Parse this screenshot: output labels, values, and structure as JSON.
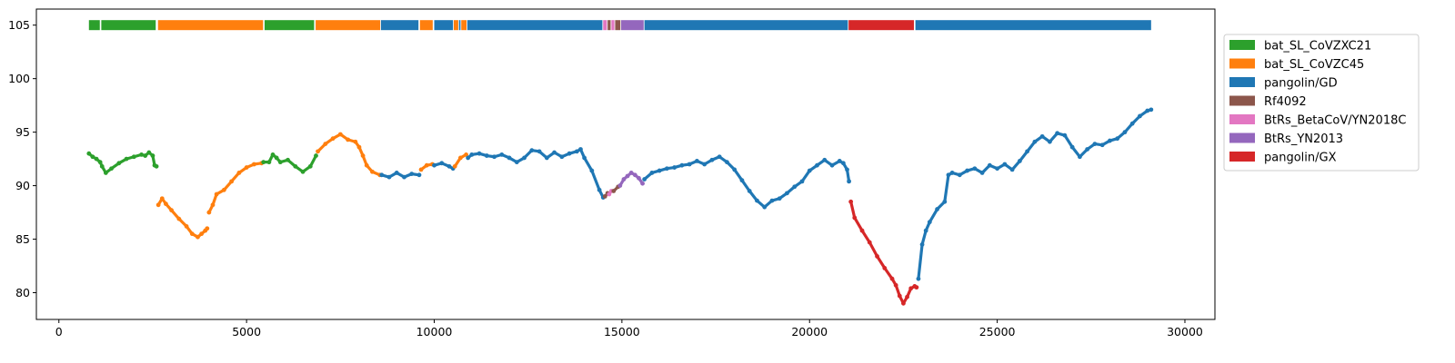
{
  "chart_data": {
    "type": "scatter",
    "title": "",
    "xlabel": "",
    "ylabel": "",
    "xlim": [
      -600,
      30800
    ],
    "ylim": [
      77.5,
      106.5
    ],
    "xticks": [
      0,
      5000,
      10000,
      15000,
      20000,
      25000,
      30000
    ],
    "xtick_labels": [
      "0",
      "5000",
      "10000",
      "15000",
      "20000",
      "25000",
      "30000"
    ],
    "yticks": [
      80,
      85,
      90,
      95,
      100,
      105
    ],
    "ytick_labels": [
      "80",
      "85",
      "90",
      "95",
      "100",
      "105"
    ],
    "grid": false,
    "legend_position": "outside-right-top",
    "series": [
      {
        "name": "bat_SL_CoVZXC21",
        "color": "#2ca02c"
      },
      {
        "name": "bat_SL_CoVZC45",
        "color": "#ff7f0e"
      },
      {
        "name": "pangolin/GD",
        "color": "#1f77b4"
      },
      {
        "name": "Rf4092",
        "color": "#8c564b"
      },
      {
        "name": "BtRs_BetaCoV/YN2018C",
        "color": "#e377c2"
      },
      {
        "name": "BtRs_YN2013",
        "color": "#9467bd"
      },
      {
        "name": "pangolin/GX",
        "color": "#d62728"
      }
    ],
    "similarity_points": [
      {
        "series": "bat_SL_CoVZXC21",
        "points": [
          [
            800,
            93.0
          ],
          [
            900,
            92.7
          ],
          [
            1000,
            92.5
          ],
          [
            1100,
            92.2
          ],
          [
            1150,
            91.8
          ],
          [
            1250,
            91.2
          ],
          [
            1400,
            91.6
          ],
          [
            1600,
            92.1
          ],
          [
            1800,
            92.5
          ],
          [
            2000,
            92.7
          ],
          [
            2200,
            92.9
          ],
          [
            2300,
            92.8
          ],
          [
            2400,
            93.1
          ],
          [
            2500,
            92.8
          ],
          [
            2550,
            91.9
          ],
          [
            2600,
            91.8
          ]
        ]
      },
      {
        "series": "bat_SL_CoVZC45",
        "points": [
          [
            2650,
            88.2
          ],
          [
            2750,
            88.8
          ],
          [
            2850,
            88.3
          ],
          [
            3000,
            87.7
          ],
          [
            3200,
            86.9
          ],
          [
            3400,
            86.2
          ],
          [
            3550,
            85.5
          ],
          [
            3700,
            85.2
          ],
          [
            3800,
            85.5
          ],
          [
            3900,
            85.8
          ],
          [
            3950,
            86.0
          ]
        ]
      },
      {
        "series": "bat_SL_CoVZC45",
        "points": [
          [
            4000,
            87.5
          ],
          [
            4100,
            88.2
          ],
          [
            4200,
            89.2
          ],
          [
            4400,
            89.6
          ],
          [
            4600,
            90.4
          ],
          [
            4800,
            91.2
          ],
          [
            5000,
            91.7
          ],
          [
            5200,
            92.0
          ],
          [
            5400,
            92.1
          ]
        ]
      },
      {
        "series": "bat_SL_CoVZXC21",
        "points": [
          [
            5450,
            92.2
          ],
          [
            5600,
            92.2
          ],
          [
            5700,
            92.9
          ],
          [
            5800,
            92.6
          ],
          [
            5900,
            92.2
          ],
          [
            6100,
            92.4
          ],
          [
            6300,
            91.8
          ],
          [
            6500,
            91.3
          ],
          [
            6700,
            91.8
          ],
          [
            6850,
            92.8
          ]
        ]
      },
      {
        "series": "bat_SL_CoVZC45",
        "points": [
          [
            6900,
            93.2
          ],
          [
            7100,
            93.9
          ],
          [
            7300,
            94.4
          ],
          [
            7500,
            94.8
          ],
          [
            7700,
            94.3
          ],
          [
            7900,
            94.1
          ],
          [
            8000,
            93.6
          ],
          [
            8100,
            92.8
          ],
          [
            8200,
            91.9
          ],
          [
            8350,
            91.3
          ],
          [
            8550,
            91.0
          ]
        ]
      },
      {
        "series": "pangolin/GD",
        "points": [
          [
            8600,
            91.0
          ],
          [
            8800,
            90.8
          ],
          [
            9000,
            91.2
          ],
          [
            9200,
            90.8
          ],
          [
            9400,
            91.1
          ],
          [
            9600,
            91.0
          ]
        ]
      },
      {
        "series": "bat_SL_CoVZC45",
        "points": [
          [
            9650,
            91.5
          ],
          [
            9800,
            91.9
          ],
          [
            9950,
            92.0
          ]
        ]
      },
      {
        "series": "pangolin/GD",
        "points": [
          [
            10000,
            91.9
          ],
          [
            10200,
            92.1
          ],
          [
            10400,
            91.8
          ],
          [
            10500,
            91.6
          ]
        ]
      },
      {
        "series": "bat_SL_CoVZC45",
        "points": [
          [
            10550,
            91.8
          ],
          [
            10700,
            92.6
          ],
          [
            10850,
            92.9
          ]
        ]
      },
      {
        "series": "pangolin/GD",
        "points": [
          [
            10900,
            92.6
          ],
          [
            11000,
            92.9
          ],
          [
            11200,
            93.0
          ],
          [
            11400,
            92.8
          ],
          [
            11600,
            92.7
          ],
          [
            11800,
            92.9
          ],
          [
            12000,
            92.6
          ],
          [
            12200,
            92.2
          ],
          [
            12400,
            92.6
          ],
          [
            12600,
            93.3
          ],
          [
            12800,
            93.2
          ],
          [
            13000,
            92.6
          ],
          [
            13200,
            93.1
          ],
          [
            13400,
            92.7
          ],
          [
            13600,
            93.0
          ],
          [
            13800,
            93.2
          ],
          [
            13900,
            93.4
          ],
          [
            14000,
            92.6
          ],
          [
            14200,
            91.4
          ],
          [
            14400,
            89.6
          ],
          [
            14500,
            88.9
          ]
        ]
      },
      {
        "series": "Rf4092",
        "points": [
          [
            14550,
            89.0
          ],
          [
            14620,
            89.3
          ]
        ]
      },
      {
        "series": "BtRs_BetaCoV/YN2018C",
        "points": [
          [
            14660,
            89.2
          ],
          [
            14720,
            89.5
          ]
        ]
      },
      {
        "series": "Rf4092",
        "points": [
          [
            14780,
            89.5
          ],
          [
            14900,
            89.9
          ]
        ]
      },
      {
        "series": "BtRs_YN2013",
        "points": [
          [
            14950,
            90.0
          ],
          [
            15050,
            90.6
          ],
          [
            15150,
            90.9
          ],
          [
            15250,
            91.2
          ],
          [
            15350,
            91.0
          ],
          [
            15450,
            90.7
          ],
          [
            15550,
            90.2
          ]
        ]
      },
      {
        "series": "pangolin/GD",
        "points": [
          [
            15600,
            90.6
          ],
          [
            15800,
            91.2
          ],
          [
            16000,
            91.4
          ],
          [
            16200,
            91.6
          ],
          [
            16400,
            91.7
          ],
          [
            16600,
            91.9
          ],
          [
            16800,
            92.0
          ],
          [
            17000,
            92.3
          ],
          [
            17200,
            92.0
          ],
          [
            17400,
            92.4
          ],
          [
            17600,
            92.7
          ],
          [
            17800,
            92.2
          ],
          [
            18000,
            91.5
          ],
          [
            18200,
            90.5
          ],
          [
            18400,
            89.5
          ],
          [
            18600,
            88.6
          ],
          [
            18800,
            88.0
          ],
          [
            19000,
            88.6
          ],
          [
            19200,
            88.8
          ],
          [
            19400,
            89.3
          ],
          [
            19600,
            89.9
          ],
          [
            19800,
            90.4
          ],
          [
            20000,
            91.4
          ],
          [
            20200,
            91.9
          ],
          [
            20400,
            92.4
          ],
          [
            20600,
            91.9
          ],
          [
            20800,
            92.3
          ],
          [
            20900,
            92.1
          ],
          [
            21000,
            91.5
          ],
          [
            21050,
            90.4
          ]
        ]
      },
      {
        "series": "pangolin/GX",
        "points": [
          [
            21100,
            88.5
          ],
          [
            21200,
            87.0
          ],
          [
            21400,
            85.8
          ],
          [
            21600,
            84.7
          ],
          [
            21800,
            83.4
          ],
          [
            22000,
            82.3
          ],
          [
            22200,
            81.3
          ],
          [
            22300,
            80.7
          ],
          [
            22400,
            79.7
          ],
          [
            22500,
            79.0
          ],
          [
            22600,
            79.6
          ],
          [
            22700,
            80.4
          ],
          [
            22800,
            80.6
          ],
          [
            22850,
            80.5
          ]
        ]
      },
      {
        "series": "pangolin/GD",
        "points": [
          [
            22900,
            81.3
          ],
          [
            23000,
            84.5
          ],
          [
            23100,
            85.8
          ],
          [
            23200,
            86.6
          ],
          [
            23400,
            87.8
          ],
          [
            23600,
            88.5
          ],
          [
            23700,
            91.0
          ],
          [
            23800,
            91.2
          ],
          [
            24000,
            91.0
          ],
          [
            24200,
            91.4
          ],
          [
            24400,
            91.6
          ],
          [
            24600,
            91.2
          ],
          [
            24800,
            91.9
          ],
          [
            25000,
            91.6
          ],
          [
            25200,
            92.0
          ],
          [
            25400,
            91.5
          ],
          [
            25600,
            92.3
          ],
          [
            25800,
            93.2
          ],
          [
            26000,
            94.1
          ],
          [
            26200,
            94.6
          ],
          [
            26400,
            94.1
          ],
          [
            26600,
            94.9
          ],
          [
            26800,
            94.7
          ],
          [
            27000,
            93.6
          ],
          [
            27200,
            92.7
          ],
          [
            27400,
            93.4
          ],
          [
            27600,
            93.9
          ],
          [
            27800,
            93.8
          ],
          [
            28000,
            94.2
          ],
          [
            28200,
            94.4
          ],
          [
            28400,
            95.0
          ],
          [
            28600,
            95.8
          ],
          [
            28800,
            96.5
          ],
          [
            29000,
            97.0
          ],
          [
            29100,
            97.1
          ]
        ]
      }
    ],
    "band_y": 105,
    "band_segments": [
      {
        "series": "bat_SL_CoVZXC21",
        "x0": 800,
        "x1": 1090
      },
      {
        "series": "bat_SL_CoVZXC21",
        "x0": 1130,
        "x1": 2580
      },
      {
        "series": "bat_SL_CoVZC45",
        "x0": 2640,
        "x1": 5440
      },
      {
        "series": "bat_SL_CoVZXC21",
        "x0": 5480,
        "x1": 6800
      },
      {
        "series": "bat_SL_CoVZC45",
        "x0": 6840,
        "x1": 8560
      },
      {
        "series": "pangolin/GD",
        "x0": 8580,
        "x1": 9580
      },
      {
        "series": "bat_SL_CoVZC45",
        "x0": 9620,
        "x1": 9960
      },
      {
        "series": "pangolin/GD",
        "x0": 10000,
        "x1": 10500
      },
      {
        "series": "bat_SL_CoVZC45",
        "x0": 10520,
        "x1": 10640
      },
      {
        "series": "pangolin/GD",
        "x0": 10660,
        "x1": 10700
      },
      {
        "series": "bat_SL_CoVZC45",
        "x0": 10720,
        "x1": 10860
      },
      {
        "series": "pangolin/GD",
        "x0": 10880,
        "x1": 14480
      },
      {
        "series": "BtRs_BetaCoV/YN2018C",
        "x0": 14500,
        "x1": 14600
      },
      {
        "series": "Rf4092",
        "x0": 14620,
        "x1": 14700
      },
      {
        "series": "BtRs_BetaCoV/YN2018C",
        "x0": 14720,
        "x1": 14800
      },
      {
        "series": "Rf4092",
        "x0": 14820,
        "x1": 14960
      },
      {
        "series": "BtRs_YN2013",
        "x0": 14980,
        "x1": 15580
      },
      {
        "series": "pangolin/GD",
        "x0": 15600,
        "x1": 21020
      },
      {
        "series": "pangolin/GX",
        "x0": 21040,
        "x1": 22780
      },
      {
        "series": "pangolin/GD",
        "x0": 22820,
        "x1": 29100
      }
    ]
  }
}
